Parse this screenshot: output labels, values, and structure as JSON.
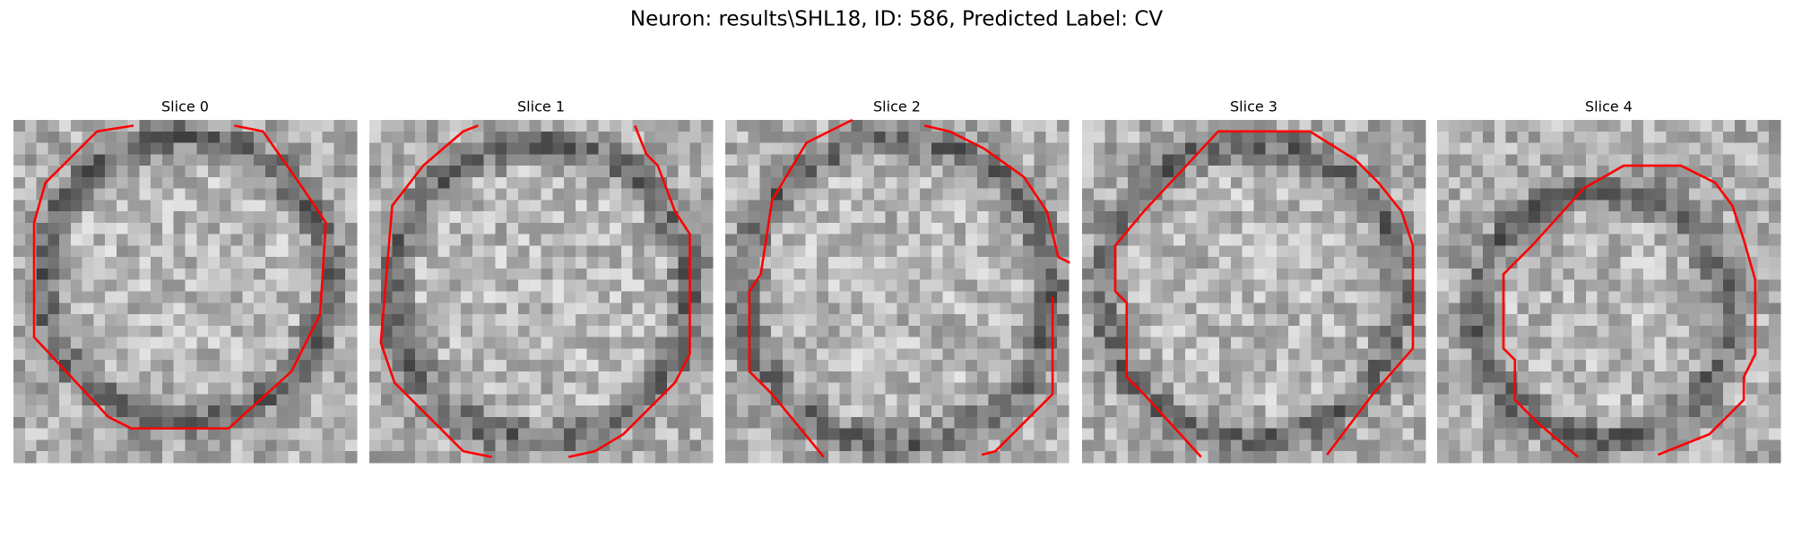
{
  "title": "Neuron: results\\SHL18, ID: 586, Predicted Label: CV",
  "panels": [
    {
      "title": "Slice 0"
    },
    {
      "title": "Slice 1"
    },
    {
      "title": "Slice 2"
    },
    {
      "title": "Slice 3"
    },
    {
      "title": "Slice 4"
    }
  ]
}
